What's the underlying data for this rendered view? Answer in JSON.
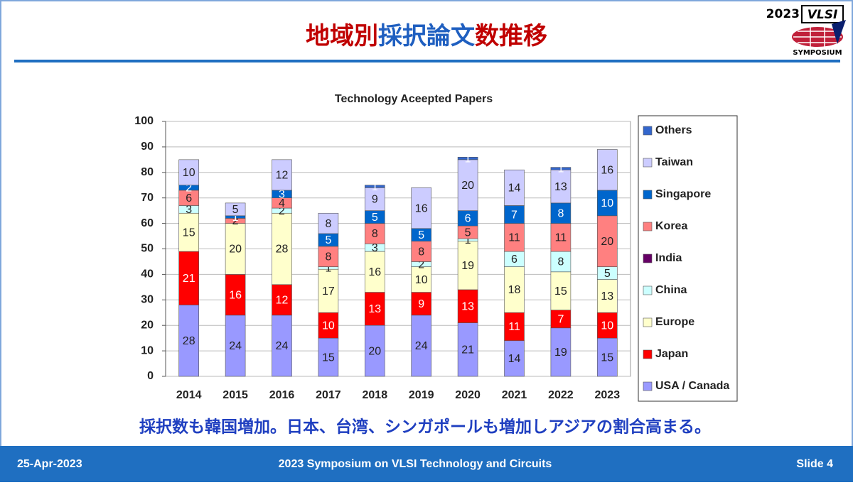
{
  "header": {
    "title_parts": [
      {
        "text": "地域別",
        "color": "#c00000"
      },
      {
        "text": "採択論文",
        "color": "#1f5fc0"
      },
      {
        "text": "数推移",
        "color": "#c00000"
      }
    ]
  },
  "logo": {
    "year": "2023",
    "name": "VLSI",
    "sub": "SYMPOSIUM"
  },
  "chart_data": {
    "type": "stacked_bar",
    "title": "Technology Aceepted Papers",
    "categories": [
      "2014",
      "2015",
      "2016",
      "2017",
      "2018",
      "2019",
      "2020",
      "2021",
      "2022",
      "2023"
    ],
    "series": [
      {
        "name": "USA / Canada",
        "color": "#9999ff",
        "values": [
          28,
          24,
          24,
          15,
          20,
          24,
          21,
          14,
          19,
          15
        ]
      },
      {
        "name": "Japan",
        "color": "#ff0000",
        "values": [
          21,
          16,
          12,
          10,
          13,
          9,
          13,
          11,
          7,
          10
        ]
      },
      {
        "name": "Europe",
        "color": "#ffffcc",
        "values": [
          15,
          20,
          28,
          17,
          16,
          10,
          19,
          18,
          15,
          13
        ]
      },
      {
        "name": "China",
        "color": "#ccffff",
        "values": [
          3,
          0,
          2,
          1,
          3,
          2,
          1,
          6,
          8,
          5
        ]
      },
      {
        "name": "India",
        "color": "#660066",
        "values": [
          0,
          0,
          0,
          0,
          0,
          0,
          0,
          0,
          0,
          0
        ]
      },
      {
        "name": "Korea",
        "color": "#ff8080",
        "values": [
          6,
          2,
          4,
          8,
          8,
          8,
          5,
          11,
          11,
          20
        ]
      },
      {
        "name": "Singapore",
        "color": "#0066cc",
        "values": [
          2,
          1,
          3,
          5,
          5,
          5,
          6,
          7,
          8,
          10
        ]
      },
      {
        "name": "Taiwan",
        "color": "#ccccff",
        "values": [
          10,
          5,
          12,
          8,
          9,
          16,
          20,
          14,
          13,
          16
        ]
      },
      {
        "name": "Others",
        "color": "#3366cc",
        "values": [
          0,
          0,
          0,
          0,
          1,
          0,
          1,
          0,
          1,
          0
        ]
      }
    ],
    "ylim": [
      0,
      100
    ],
    "yticks": [
      0,
      10,
      20,
      30,
      40,
      50,
      60,
      70,
      80,
      90,
      100
    ],
    "grid": true
  },
  "caption": "採択数も韓国増加。日本、台湾、シンガポールも増加しアジアの割合高まる。",
  "footer": {
    "date": "25-Apr-2023",
    "event": "2023 Symposium on VLSI Technology and Circuits",
    "slide": "Slide 4"
  }
}
